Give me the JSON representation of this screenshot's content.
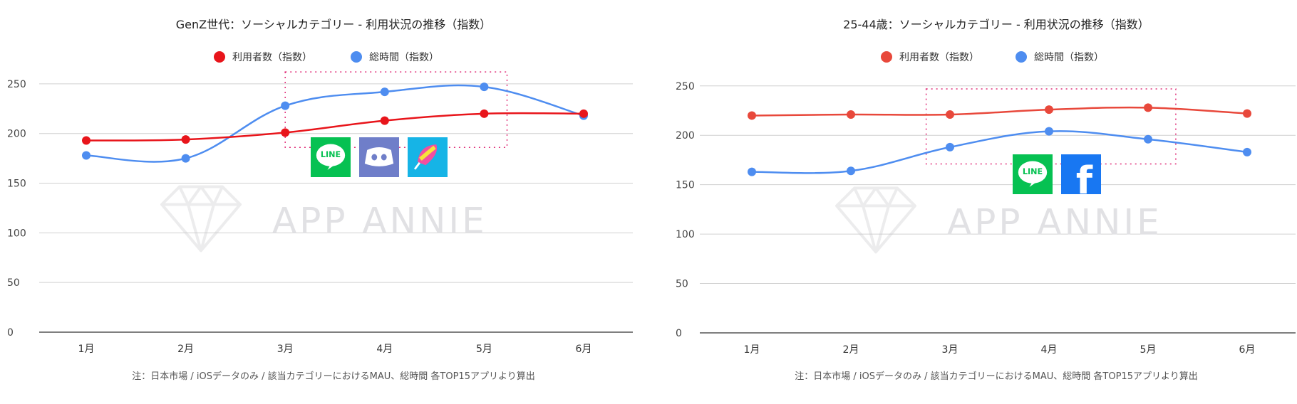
{
  "chart_data": [
    {
      "type": "line",
      "title": "GenZ世代：ソーシャルカテゴリー - 利用状況の推移（指数）",
      "categories": [
        "1月",
        "2月",
        "3月",
        "4月",
        "5月",
        "6月"
      ],
      "series": [
        {
          "name": "利用者数（指数）",
          "color": "#e8151b",
          "values": [
            193,
            194,
            201,
            213,
            220,
            220
          ]
        },
        {
          "name": "総時間（指数）",
          "color": "#4e8df0",
          "values": [
            178,
            175,
            228,
            242,
            247,
            218
          ]
        }
      ],
      "y_ticks": [
        0,
        50,
        100,
        150,
        200,
        250
      ],
      "ylim": [
        0,
        270
      ],
      "grid": true,
      "legend_position": "top",
      "highlight": {
        "x_from": 2.0,
        "x_to": 4.23,
        "y_from": 186,
        "y_to": 262
      },
      "app_icons": [
        "line-icon",
        "discord-icon",
        "peing-icon"
      ],
      "watermark": "APP ANNIE",
      "footnote": "注：日本市場 / iOSデータのみ / 該当カテゴリーにおけるMAU、総時間 各TOP15アプリより算出"
    },
    {
      "type": "line",
      "title": "25-44歳：ソーシャルカテゴリー - 利用状況の推移（指数）",
      "categories": [
        "1月",
        "2月",
        "3月",
        "4月",
        "5月",
        "6月"
      ],
      "series": [
        {
          "name": "利用者数（指数）",
          "color": "#e8483b",
          "values": [
            220,
            221,
            221,
            226,
            228,
            222
          ]
        },
        {
          "name": "総時間（指数）",
          "color": "#4e8df0",
          "values": [
            163,
            164,
            188,
            204,
            196,
            183
          ]
        }
      ],
      "y_ticks": [
        0,
        50,
        100,
        150,
        200,
        250
      ],
      "ylim": [
        0,
        270
      ],
      "grid": true,
      "legend_position": "top",
      "highlight": {
        "x_from": 1.76,
        "x_to": 4.28,
        "y_from": 171,
        "y_to": 247
      },
      "app_icons": [
        "line-icon",
        "facebook-icon"
      ],
      "watermark": "APP ANNIE",
      "footnote": "注：日本市場 / iOSデータのみ / 該当カテゴリーにおけるMAU、総時間 各TOP15アプリより算出"
    }
  ]
}
